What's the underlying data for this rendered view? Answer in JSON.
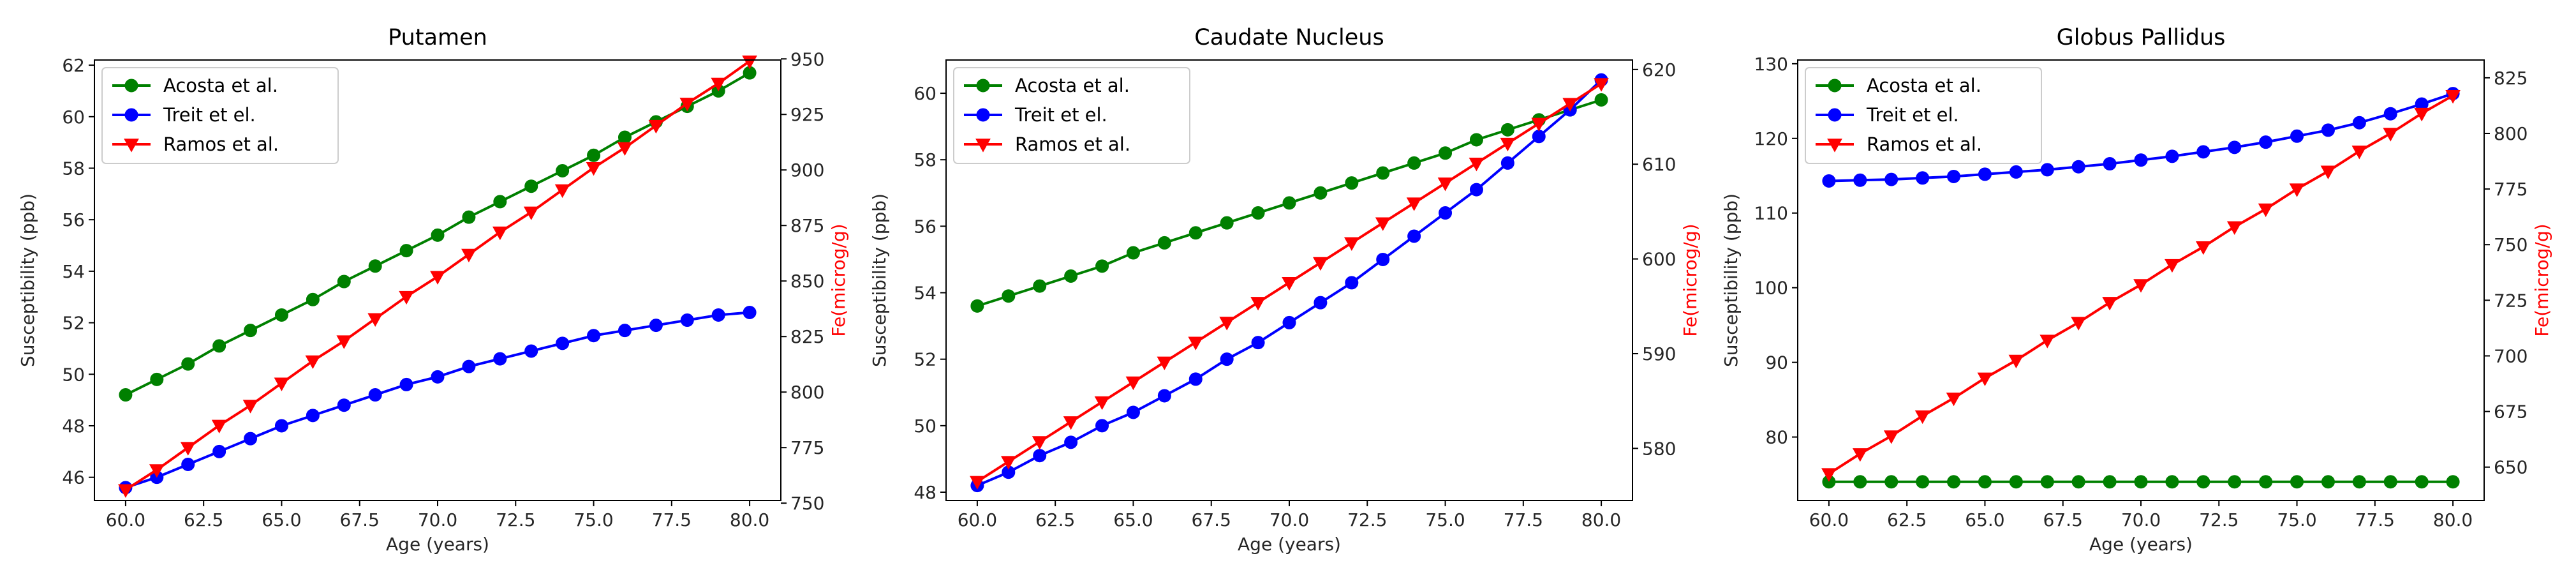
{
  "chart_data": [
    {
      "type": "line",
      "title": "Putamen",
      "xlabel": "Age (years)",
      "ylabel": "Susceptibility (ppb)",
      "y2label": "Fe(microg/g)",
      "x": [
        60,
        61,
        62,
        63,
        64,
        65,
        66,
        67,
        68,
        69,
        70,
        71,
        72,
        73,
        74,
        75,
        76,
        77,
        78,
        79,
        80
      ],
      "xlim": [
        59,
        81
      ],
      "ylim": [
        45.1,
        62.2
      ],
      "y2lim": [
        751.2,
        949.5
      ],
      "xticks": [
        "60.0",
        "62.5",
        "65.0",
        "67.5",
        "70.0",
        "72.5",
        "75.0",
        "77.5",
        "80.0"
      ],
      "yticks": [
        "46",
        "48",
        "50",
        "52",
        "54",
        "56",
        "58",
        "60",
        "62"
      ],
      "y2ticks": [
        "750",
        "775",
        "800",
        "825",
        "850",
        "875",
        "900",
        "925",
        "950"
      ],
      "legend_loc": "upper-left",
      "series": [
        {
          "name": "Acosta et al.",
          "axis": "left",
          "color": "#008000",
          "marker": "circle",
          "values": [
            49.2,
            49.8,
            50.4,
            51.1,
            51.7,
            52.3,
            52.9,
            53.6,
            54.2,
            54.8,
            55.4,
            56.1,
            56.7,
            57.3,
            57.9,
            58.5,
            59.2,
            59.8,
            60.4,
            61.0,
            61.7
          ]
        },
        {
          "name": "Treit et el.",
          "axis": "left",
          "color": "#0000ff",
          "marker": "circle",
          "values": [
            45.6,
            46.0,
            46.5,
            47.0,
            47.5,
            48.0,
            48.4,
            48.8,
            49.2,
            49.6,
            49.9,
            50.3,
            50.6,
            50.9,
            51.2,
            51.5,
            51.7,
            51.9,
            52.1,
            52.3,
            52.4
          ]
        },
        {
          "name": "Ramos et al.",
          "axis": "right",
          "color": "#ff0000",
          "marker": "triangle-down",
          "values": [
            756,
            765,
            775,
            785,
            794,
            804,
            814,
            823,
            833,
            843,
            852,
            862,
            872,
            881,
            891,
            901,
            910,
            920,
            930,
            939,
            949
          ]
        }
      ]
    },
    {
      "type": "line",
      "title": "Caudate Nucleus",
      "xlabel": "Age (years)",
      "ylabel": "Susceptibility (ppb)",
      "y2label": "Fe(microg/g)",
      "x": [
        60,
        61,
        62,
        63,
        64,
        65,
        66,
        67,
        68,
        69,
        70,
        71,
        72,
        73,
        74,
        75,
        76,
        77,
        78,
        79,
        80
      ],
      "xlim": [
        59,
        81
      ],
      "ylim": [
        47.75,
        61.0
      ],
      "y2lim": [
        574.5,
        621.0
      ],
      "xticks": [
        "60.0",
        "62.5",
        "65.0",
        "67.5",
        "70.0",
        "72.5",
        "75.0",
        "77.5",
        "80.0"
      ],
      "yticks": [
        "48",
        "50",
        "52",
        "54",
        "56",
        "58",
        "60"
      ],
      "y2ticks": [
        "580",
        "590",
        "600",
        "610",
        "620"
      ],
      "legend_loc": "upper-left",
      "series": [
        {
          "name": "Acosta et al.",
          "axis": "left",
          "color": "#008000",
          "marker": "circle",
          "values": [
            53.6,
            53.9,
            54.2,
            54.5,
            54.8,
            55.2,
            55.5,
            55.8,
            56.1,
            56.4,
            56.7,
            57.0,
            57.3,
            57.6,
            57.9,
            58.2,
            58.6,
            58.9,
            59.2,
            59.5,
            59.8
          ]
        },
        {
          "name": "Treit et el.",
          "axis": "left",
          "color": "#0000ff",
          "marker": "circle",
          "values": [
            48.2,
            48.6,
            49.1,
            49.5,
            50.0,
            50.4,
            50.9,
            51.4,
            52.0,
            52.5,
            53.1,
            53.7,
            54.3,
            55.0,
            55.7,
            56.4,
            57.1,
            57.9,
            58.7,
            59.5,
            60.4
          ]
        },
        {
          "name": "Ramos et al.",
          "axis": "right",
          "color": "#ff0000",
          "marker": "triangle-down",
          "values": [
            576.5,
            578.6,
            580.7,
            582.8,
            584.9,
            587.0,
            589.1,
            591.2,
            593.3,
            595.4,
            597.5,
            599.6,
            601.7,
            603.8,
            605.9,
            608.0,
            610.1,
            612.2,
            614.3,
            616.4,
            618.5
          ]
        }
      ]
    },
    {
      "type": "line",
      "title": "Globus Pallidus",
      "xlabel": "Age (years)",
      "ylabel": "Susceptibility (ppb)",
      "y2label": "Fe(microg/g)",
      "x": [
        60,
        61,
        62,
        63,
        64,
        65,
        66,
        67,
        68,
        69,
        70,
        71,
        72,
        73,
        74,
        75,
        76,
        77,
        78,
        79,
        80
      ],
      "xlim": [
        59,
        81
      ],
      "ylim": [
        71.5,
        130.5
      ],
      "y2lim": [
        635,
        833
      ],
      "xticks": [
        "60.0",
        "62.5",
        "65.0",
        "67.5",
        "70.0",
        "72.5",
        "75.0",
        "77.5",
        "80.0"
      ],
      "yticks": [
        "80",
        "90",
        "100",
        "110",
        "120",
        "130"
      ],
      "y2ticks": [
        "650",
        "675",
        "700",
        "725",
        "750",
        "775",
        "800",
        "825"
      ],
      "legend_loc": "upper-left",
      "series": [
        {
          "name": "Acosta et al.",
          "axis": "left",
          "color": "#008000",
          "marker": "circle",
          "values": [
            74,
            74,
            74,
            74,
            74,
            74,
            74,
            74,
            74,
            74,
            74,
            74,
            74,
            74,
            74,
            74,
            74,
            74,
            74,
            74,
            74
          ]
        },
        {
          "name": "Treit et el.",
          "axis": "left",
          "color": "#0000ff",
          "marker": "circle",
          "values": [
            114.3,
            114.4,
            114.5,
            114.7,
            114.9,
            115.2,
            115.5,
            115.8,
            116.2,
            116.6,
            117.1,
            117.6,
            118.2,
            118.8,
            119.5,
            120.3,
            121.1,
            122.1,
            123.3,
            124.6,
            126.0
          ]
        },
        {
          "name": "Ramos et al.",
          "axis": "right",
          "color": "#ff0000",
          "marker": "triangle-down",
          "values": [
            647,
            656,
            664,
            673,
            681,
            690,
            698,
            707,
            715,
            724,
            732,
            741,
            749,
            758,
            766,
            775,
            783,
            792,
            800,
            809,
            817
          ]
        }
      ]
    }
  ]
}
